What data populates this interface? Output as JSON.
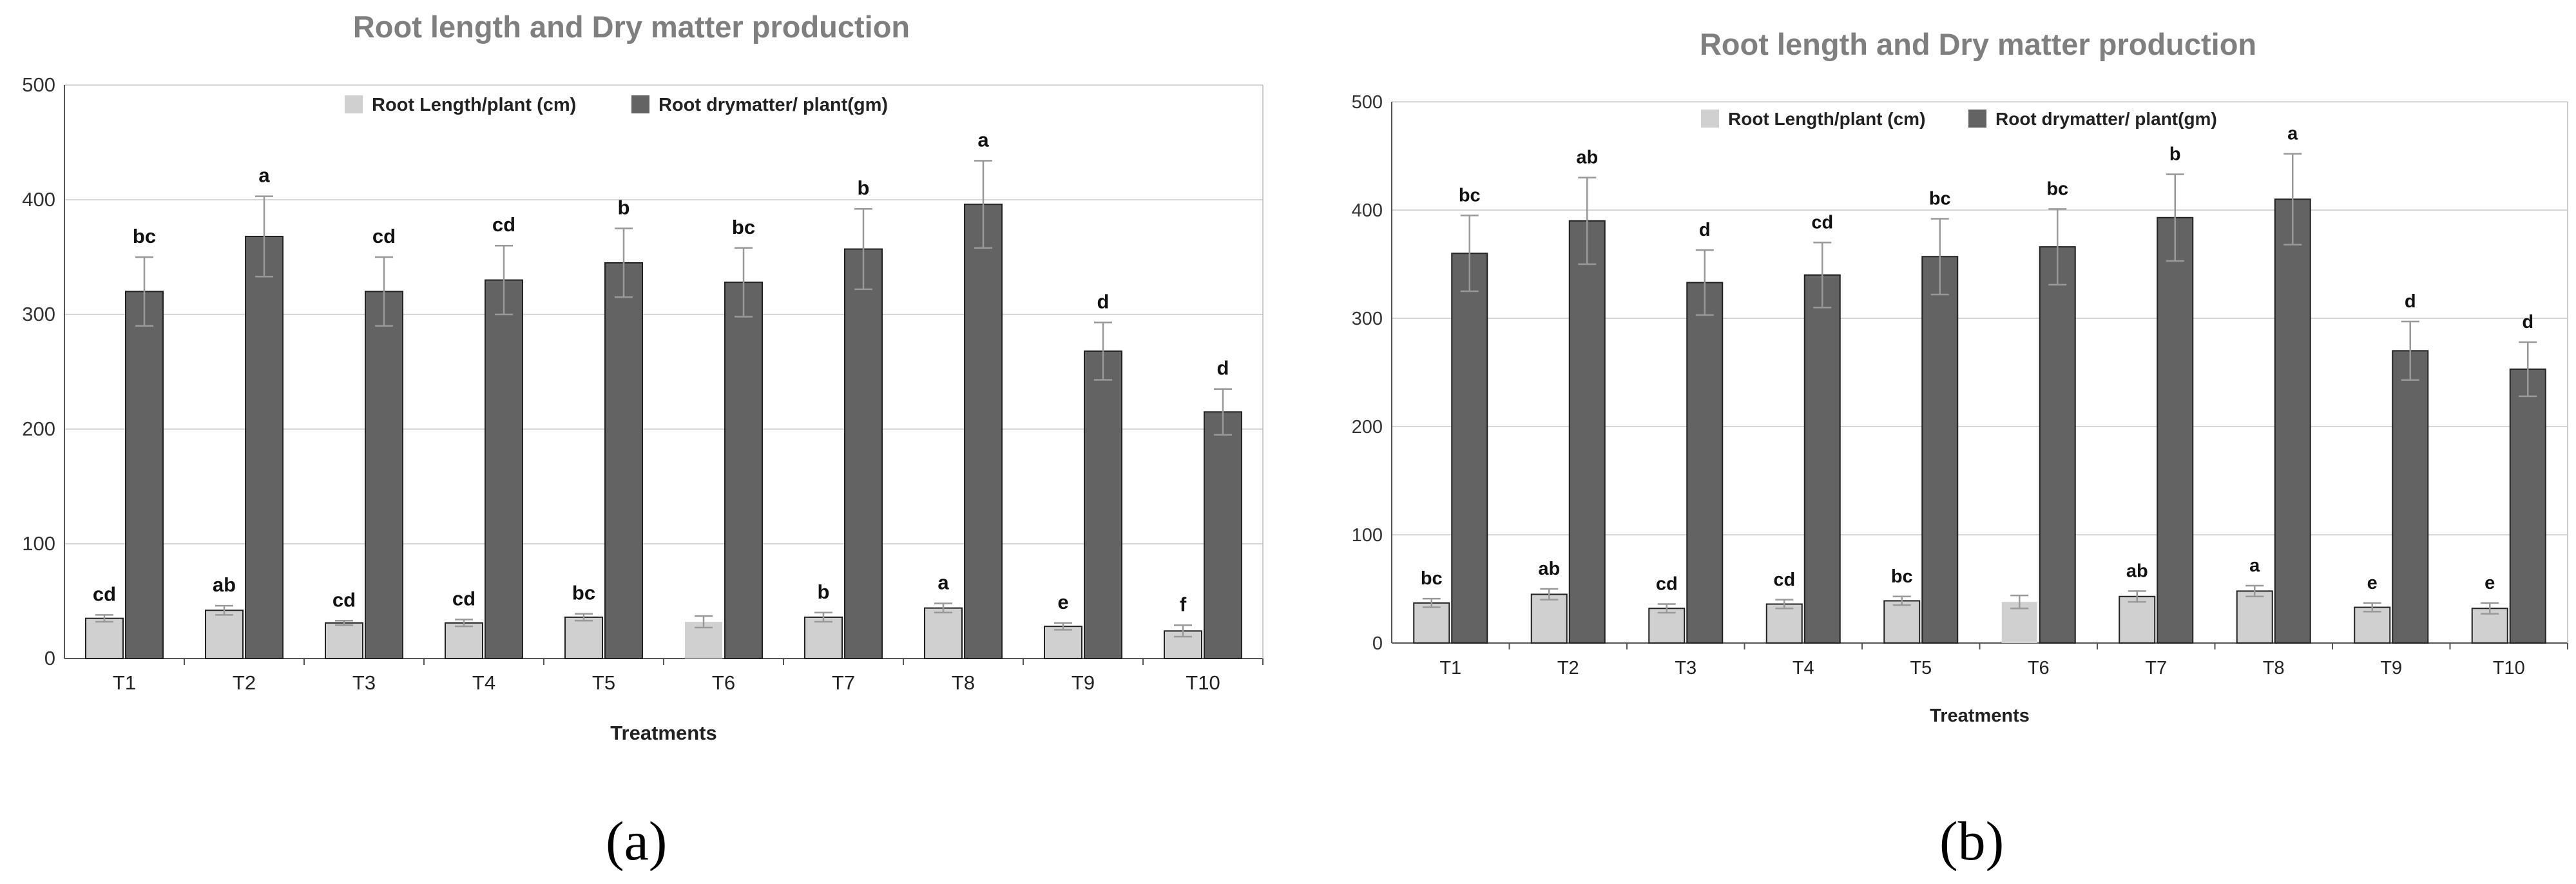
{
  "chart_data": [
    {
      "panel_label": "(a)",
      "type": "bar",
      "title": "Root length and Dry matter production",
      "xlabel": "Treatments",
      "ylabel": "",
      "ylim": [
        0,
        500
      ],
      "yticks": [
        0,
        100,
        200,
        300,
        400,
        500
      ],
      "grid": true,
      "legend": "top-center",
      "categories": [
        "T1",
        "T2",
        "T3",
        "T4",
        "T5",
        "T6",
        "T7",
        "T8",
        "T9",
        "T10"
      ],
      "series": [
        {
          "name": "Root Length/plant (cm)",
          "color": "#d0d0d0",
          "values": [
            35,
            42,
            31,
            31,
            36,
            32,
            36,
            44,
            28,
            24
          ],
          "errors": [
            3,
            4,
            2,
            3,
            3,
            5,
            4,
            4,
            3,
            5
          ],
          "labels": [
            "cd",
            "ab",
            "cd",
            "cd",
            "bc",
            "",
            "b",
            "a",
            "e",
            "f"
          ]
        },
        {
          "name": "Root drymatter/ plant(gm)",
          "color": "#636363",
          "values": [
            320,
            368,
            320,
            330,
            345,
            328,
            357,
            396,
            268,
            215
          ],
          "errors": [
            30,
            35,
            30,
            30,
            30,
            30,
            35,
            38,
            25,
            20
          ],
          "labels": [
            "bc",
            "a",
            "cd",
            "cd",
            "b",
            "bc",
            "b",
            "a",
            "d",
            "d"
          ]
        }
      ]
    },
    {
      "panel_label": "(b)",
      "type": "bar",
      "title": "Root length and Dry matter production",
      "xlabel": "Treatments",
      "ylabel": "",
      "ylim": [
        0,
        500
      ],
      "yticks": [
        0,
        100,
        200,
        300,
        400,
        500
      ],
      "grid": true,
      "legend": "top-center",
      "categories": [
        "T1",
        "T2",
        "T3",
        "T4",
        "T5",
        "T6",
        "T7",
        "T8",
        "T9",
        "T10"
      ],
      "series": [
        {
          "name": "Root Length/plant (cm)",
          "color": "#d0d0d0",
          "values": [
            37,
            45,
            32,
            36,
            39,
            38,
            43,
            48,
            33,
            32
          ],
          "errors": [
            4,
            5,
            4,
            4,
            4,
            6,
            5,
            5,
            4,
            5
          ],
          "labels": [
            "bc",
            "ab",
            "cd",
            "cd",
            "bc",
            "",
            "ab",
            "a",
            "e",
            "e"
          ]
        },
        {
          "name": "Root drymatter/ plant(gm)",
          "color": "#636363",
          "values": [
            360,
            390,
            333,
            340,
            357,
            366,
            393,
            410,
            270,
            253
          ],
          "errors": [
            35,
            40,
            30,
            30,
            35,
            35,
            40,
            42,
            27,
            25
          ],
          "labels": [
            "bc",
            "ab",
            "d",
            "cd",
            "bc",
            "bc",
            "b",
            "a",
            "d",
            "d"
          ]
        }
      ]
    }
  ]
}
